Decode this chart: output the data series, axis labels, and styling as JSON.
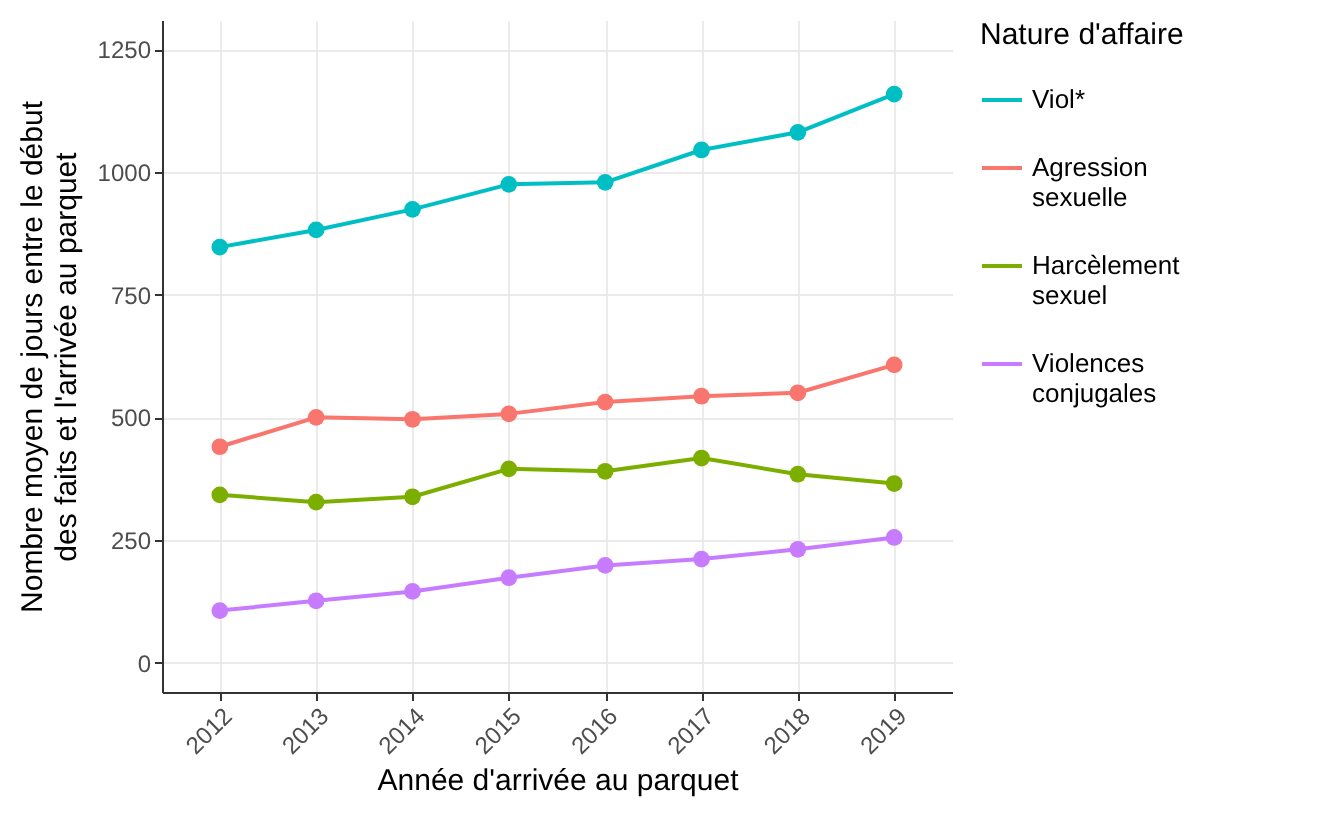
{
  "chart_data": {
    "type": "line",
    "xlabel": "Année d'arrivée au parquet",
    "ylabel": "Nombre moyen de jours entre le début des faits et l'arrivée au parquet",
    "legend_title": "Nature d'affaire",
    "categories": [
      "2012",
      "2013",
      "2014",
      "2015",
      "2016",
      "2017",
      "2018",
      "2019"
    ],
    "series": [
      {
        "name": "Viol*",
        "color": "#00bfc4",
        "values": [
          847,
          882,
          924,
          975,
          979,
          1045,
          1081,
          1159
        ]
      },
      {
        "name": "Agression sexuelle",
        "color": "#f8766d",
        "values": [
          440,
          500,
          496,
          507,
          531,
          543,
          550,
          607
        ]
      },
      {
        "name": "Harcèlement sexuel",
        "color": "#7cae00",
        "values": [
          342,
          327,
          338,
          395,
          390,
          417,
          384,
          365
        ]
      },
      {
        "name": "Violences conjugales",
        "color": "#c77cff",
        "values": [
          106,
          126,
          145,
          173,
          198,
          211,
          231,
          255
        ]
      }
    ],
    "ylim": [
      -60,
      1310
    ],
    "yticks": [
      0,
      250,
      500,
      750,
      1000,
      1250
    ],
    "grid": true,
    "legend": "right",
    "marker": "circle",
    "line_style": "solid"
  }
}
